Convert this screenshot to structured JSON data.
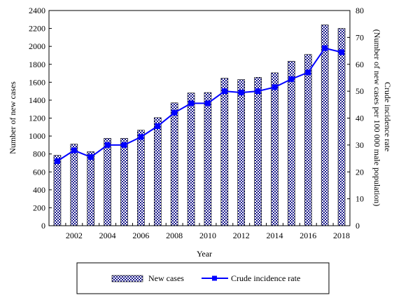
{
  "chart_data": {
    "type": "bar+line",
    "x": [
      2001,
      2002,
      2003,
      2004,
      2005,
      2006,
      2007,
      2008,
      2009,
      2010,
      2011,
      2012,
      2013,
      2014,
      2015,
      2016,
      2017,
      2018
    ],
    "x_tick_labels": [
      "2002",
      "2004",
      "2006",
      "2008",
      "2010",
      "2012",
      "2014",
      "2016",
      "2018"
    ],
    "xlabel": "Year",
    "left_axis": {
      "label": "Number of new cases",
      "range": [
        0,
        2400
      ],
      "ticks": [
        "0",
        "200",
        "400",
        "600",
        "800",
        "1000",
        "1200",
        "1400",
        "1600",
        "1800",
        "2000",
        "2200",
        "2400"
      ]
    },
    "right_axis": {
      "label": "Crude incidence rate (Number of new cases per 100 000 male population)",
      "range": [
        0,
        80
      ],
      "ticks": [
        "0",
        "10",
        "20",
        "30",
        "40",
        "50",
        "60",
        "70",
        "80"
      ]
    },
    "series": [
      {
        "name": "New cases",
        "kind": "bar",
        "axis": "left",
        "pattern": "checkered",
        "color": "#1a1a8c",
        "values": [
          785,
          910,
          825,
          975,
          975,
          1065,
          1205,
          1370,
          1480,
          1485,
          1645,
          1630,
          1655,
          1705,
          1835,
          1910,
          2240,
          2200
        ]
      },
      {
        "name": "Crude incidence rate",
        "kind": "line",
        "axis": "right",
        "color": "#0000ff",
        "marker": "square",
        "values": [
          24.0,
          28.0,
          25.5,
          30.0,
          30.0,
          33.0,
          37.0,
          42.0,
          45.5,
          45.5,
          50.0,
          49.5,
          50.0,
          51.5,
          54.5,
          57.0,
          66.0,
          64.5
        ]
      }
    ],
    "grid": false,
    "legend_position": "bottom"
  }
}
